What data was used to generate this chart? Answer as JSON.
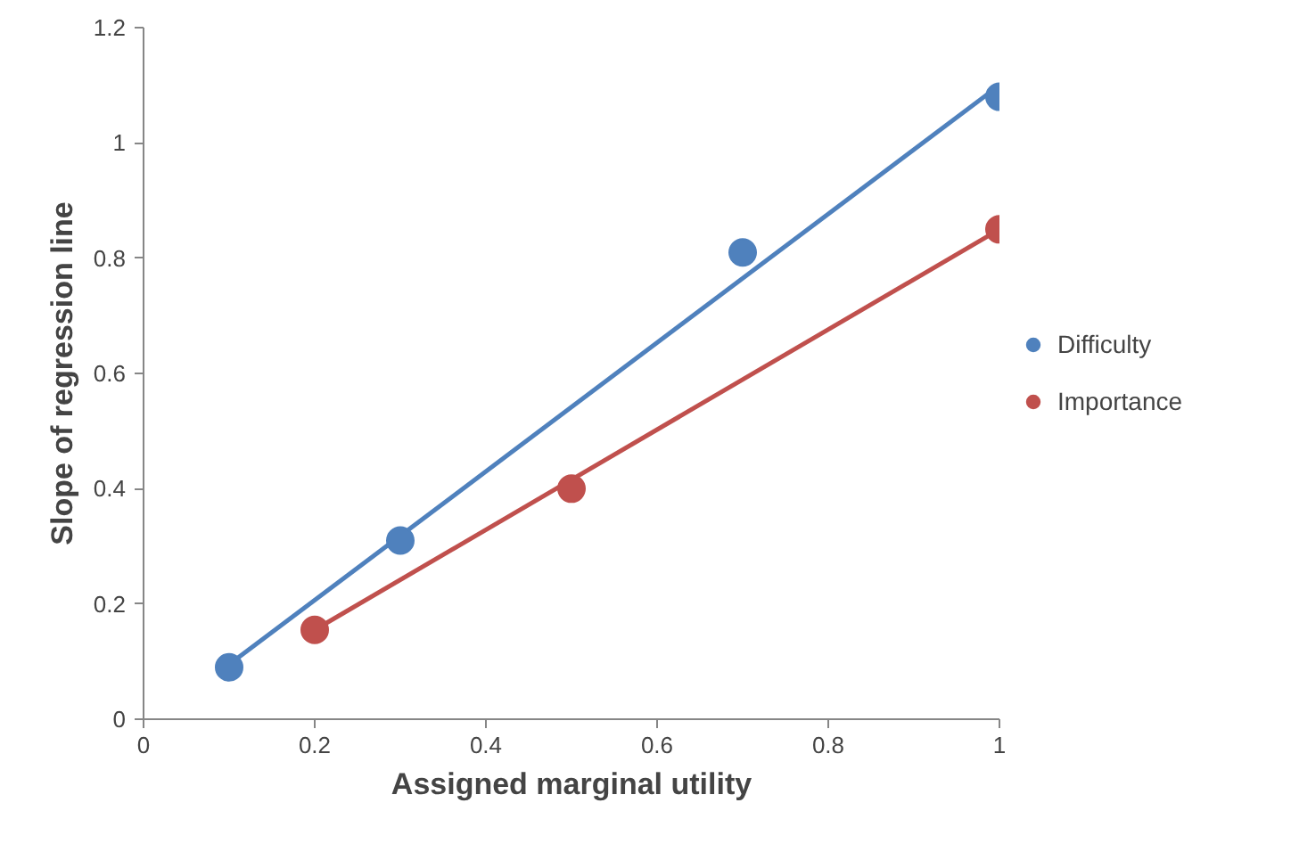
{
  "chart_data": {
    "type": "scatter",
    "xlabel": "Assigned marginal utility",
    "ylabel": "Slope of regression line",
    "xlim": [
      0,
      1
    ],
    "ylim": [
      0,
      1.2
    ],
    "xticks": [
      0,
      0.2,
      0.4,
      0.6,
      0.8,
      1
    ],
    "yticks": [
      0,
      0.2,
      0.4,
      0.6,
      0.8,
      1,
      1.2
    ],
    "grid": false,
    "legend": "right",
    "series": [
      {
        "name": "Difficulty",
        "color": "#4f81bd",
        "x": [
          0.1,
          0.3,
          0.7,
          1.0
        ],
        "values": [
          0.09,
          0.31,
          0.81,
          1.08
        ],
        "marker": "circle"
      },
      {
        "name": "Importance",
        "color": "#c0504d",
        "x": [
          0.2,
          0.5,
          1.0
        ],
        "values": [
          0.155,
          0.4,
          0.85
        ],
        "marker": "circle"
      },
      {
        "type": "line",
        "color": "#4f81bd",
        "x": [
          0.1,
          1.0
        ],
        "values": [
          0.095,
          1.1
        ],
        "marker": "none"
      },
      {
        "type": "line",
        "color": "#c0504d",
        "x": [
          0.2,
          1.0
        ],
        "values": [
          0.155,
          0.85
        ],
        "marker": "none"
      }
    ]
  }
}
